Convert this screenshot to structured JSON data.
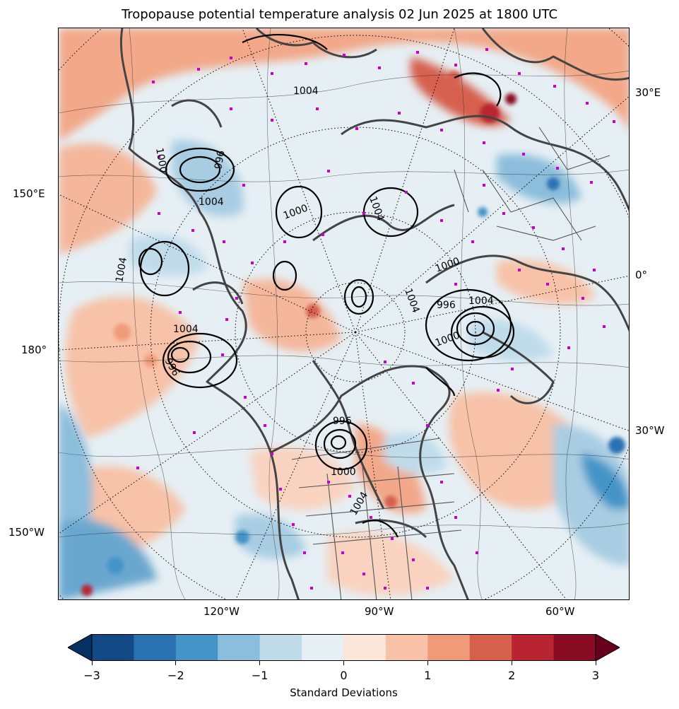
{
  "title": "Tropopause potential temperature analysis 02 Jun 2025 at 1800 UTC",
  "longitude_labels": {
    "right_30E": "30°E",
    "right_0": "0°",
    "right_30W": "30°W",
    "left_150E": "150°E",
    "left_180": "180°",
    "left_150W": "150°W",
    "bottom_120W": "120°W",
    "bottom_90W": "90°W",
    "bottom_60W": "60°W"
  },
  "pressure_contour_labels": [
    "1004",
    "1000",
    "996",
    "1004",
    "1000",
    "1004",
    "1004",
    "996",
    "1004",
    "1000",
    "1004",
    "996",
    "1004",
    "996",
    "1004",
    "1000",
    "1000"
  ],
  "colorbar": {
    "label": "Standard Deviations",
    "ticks": [
      "−3",
      "−2",
      "−1",
      "0",
      "1",
      "2",
      "3"
    ],
    "colors": [
      "#053061",
      "#134a86",
      "#2a71b2",
      "#4594c7",
      "#8bbedc",
      "#c0dceb",
      "#e6eff4",
      "#fbe5d8",
      "#f7c2a7",
      "#ef9a79",
      "#d6604d",
      "#b82531",
      "#8a0b24",
      "#67001f"
    ]
  },
  "map_colors": {
    "land_outline": "#444444",
    "stations": "#cc00cc",
    "pressure_contours": "#000000",
    "warm": "#ef9a79",
    "warm_strong": "#c4423b",
    "cool": "#8bbedc",
    "cool_strong": "#4594c7"
  }
}
